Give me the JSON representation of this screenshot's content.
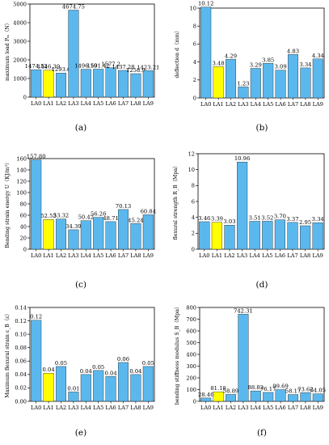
{
  "chart_data": [
    {
      "type": "bar",
      "panel_label": "(a)",
      "ylabel": "maximum load Pₘ（N）",
      "ylim": [
        0,
        5000
      ],
      "yticks": [
        0,
        1000,
        2000,
        3000,
        4000,
        5000
      ],
      "categories": [
        "LA0",
        "LA1",
        "LA2",
        "LA3",
        "LA4",
        "LA5",
        "LA6",
        "LA7",
        "LA8",
        "LA9"
      ],
      "values": [
        1474.52,
        1446.39,
        1293.6,
        4674.75,
        1496.19,
        1501.42,
        1577.2,
        1437.28,
        1258.9,
        1423.21
      ],
      "value_labels": [
        "1474.52",
        "1446.39",
        "1293.6",
        "4674.75",
        "1496.19",
        "1501.42",
        "1577.2",
        "1437.28",
        "1258.9",
        "1423.21"
      ],
      "bar_color": "#5ab8ee",
      "highlight_index": 1,
      "highlight_color": "#ffff00",
      "grid": false
    },
    {
      "type": "bar",
      "panel_label": "(b)",
      "ylabel": "deflection d（mm）",
      "ylim": [
        0,
        10
      ],
      "yticks": [
        0,
        2,
        4,
        6,
        8,
        10
      ],
      "categories": [
        "LA0",
        "LA1",
        "LA2",
        "LA3",
        "LA4",
        "LA5",
        "LA6",
        "LA7",
        "LA8",
        "LA9"
      ],
      "values": [
        10.12,
        3.48,
        4.29,
        1.23,
        3.29,
        3.85,
        3.09,
        4.83,
        3.34,
        4.34
      ],
      "value_labels": [
        "10.12",
        "3.48",
        "4.29",
        "1.23",
        "3.29",
        "3.85",
        "3.09",
        "4.83",
        "3.34",
        "4.34"
      ],
      "bar_color": "#5ab8ee",
      "highlight_index": 1,
      "highlight_color": "#ffff00",
      "grid": false
    },
    {
      "type": "bar",
      "panel_label": "(c)",
      "ylabel": "Bending strain energy U（KJ/m³）",
      "ylim": [
        0,
        160
      ],
      "yticks": [
        0,
        20,
        40,
        60,
        80,
        100,
        120,
        140,
        160
      ],
      "categories": [
        "LA0",
        "LA1",
        "LA2",
        "LA3",
        "LA4",
        "LA5",
        "LA6",
        "LA7",
        "LA8",
        "LA9"
      ],
      "values": [
        157.8,
        52.53,
        53.32,
        34.39,
        50.42,
        56.26,
        48.71,
        70.13,
        45.24,
        60.84
      ],
      "value_labels": [
        "157.80",
        "52.53",
        "53.32",
        "34.39",
        "50.42",
        "56.26",
        "48.71",
        "70.13",
        "45.24",
        "60.84"
      ],
      "bar_color": "#5ab8ee",
      "highlight_index": 1,
      "highlight_color": "#ffff00",
      "grid": false
    },
    {
      "type": "bar",
      "panel_label": "(d)",
      "ylabel": "flexural strength R_B（Mpa）",
      "ylim": [
        0,
        12
      ],
      "yticks": [
        0,
        2,
        4,
        6,
        8,
        10,
        12
      ],
      "categories": [
        "LA0",
        "LA1",
        "LA2",
        "LA3",
        "LA4",
        "LA5",
        "LA6",
        "LA7",
        "LA8",
        "LA9"
      ],
      "values": [
        3.46,
        3.39,
        3.03,
        10.96,
        3.51,
        3.52,
        3.7,
        3.37,
        2.95,
        3.34
      ],
      "value_labels": [
        "3.46",
        "3.39",
        "3.03",
        "10.96",
        "3.51",
        "3.52",
        "3.70",
        "3.37",
        "2.95",
        "3.34"
      ],
      "bar_color": "#5ab8ee",
      "highlight_index": 1,
      "highlight_color": "#ffff00",
      "grid": false
    },
    {
      "type": "bar",
      "panel_label": "(e)",
      "ylabel": "Maximum flexural strain ε_B（ε）",
      "ylim": [
        0,
        0.14
      ],
      "yticks": [
        0,
        0.02,
        0.04,
        0.06,
        0.08,
        0.1,
        0.12,
        0.14
      ],
      "ytick_labels": [
        "0.00",
        "0.02",
        "0.04",
        "0.06",
        "0.08",
        "0.10",
        "0.12",
        "0.14"
      ],
      "categories": [
        "LA0",
        "LA1",
        "LA2",
        "LA3",
        "LA4",
        "LA5",
        "LA6",
        "LA7",
        "LA8",
        "LA9"
      ],
      "values": [
        0.121,
        0.042,
        0.052,
        0.014,
        0.04,
        0.046,
        0.037,
        0.058,
        0.04,
        0.052
      ],
      "value_labels": [
        "0.12",
        "0.04",
        "0.05",
        "0.01",
        "0.04",
        "0.05",
        "0.04",
        "0.06",
        "0.04",
        "0.05"
      ],
      "bar_color": "#5ab8ee",
      "highlight_index": 1,
      "highlight_color": "#ffff00",
      "grid": false
    },
    {
      "type": "bar",
      "panel_label": "(f)",
      "ylabel": "bending stiffness modulus S_B（Mpa）",
      "ylim": [
        0,
        800
      ],
      "yticks": [
        0,
        100,
        200,
        300,
        400,
        500,
        600,
        700,
        800
      ],
      "categories": [
        "LA0",
        "LA1",
        "LA2",
        "LA3",
        "LA4",
        "LA5",
        "LA6",
        "LA7",
        "LA8",
        "LA9"
      ],
      "values": [
        28.46,
        81.18,
        58.89,
        742.31,
        88.82,
        76.17,
        99.69,
        58.17,
        73.62,
        64.05
      ],
      "value_labels": [
        "28.46",
        "81.18",
        "58.89",
        "742.31",
        "88.82",
        "76.17",
        "99.69",
        "58.17",
        "73.62",
        "64.05"
      ],
      "bar_color": "#5ab8ee",
      "highlight_index": 1,
      "highlight_color": "#ffff00",
      "grid": false
    }
  ]
}
